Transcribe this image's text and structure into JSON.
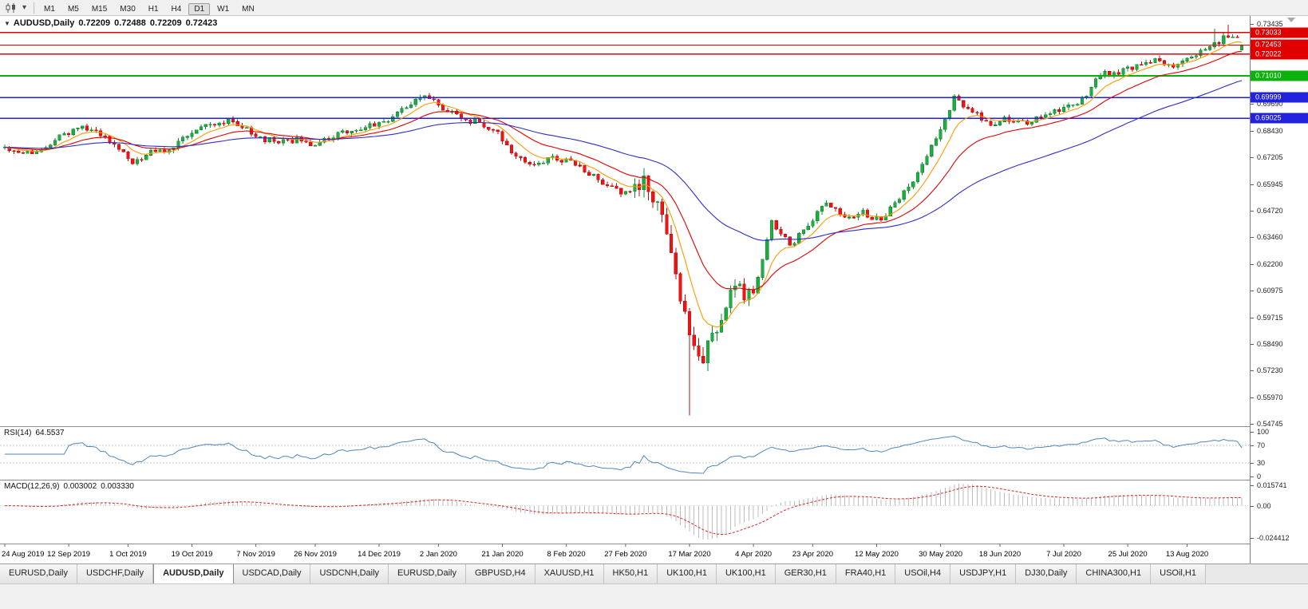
{
  "toolbar": {
    "timeframes": [
      "M1",
      "M5",
      "M15",
      "M30",
      "H1",
      "H4",
      "D1",
      "W1",
      "MN"
    ],
    "active_timeframe": "D1"
  },
  "chart": {
    "symbol_label": "AUDUSD,Daily",
    "ohlc_open": "0.72209",
    "ohlc_high": "0.72488",
    "ohlc_low": "0.72209",
    "ohlc_close": "0.72423",
    "collapse_arrow": "▼"
  },
  "rsi": {
    "name": "RSI(14)",
    "value": "64.5537",
    "axis_labels": [
      "100",
      "70",
      "30",
      "0"
    ],
    "level_lines": [
      70,
      30
    ]
  },
  "macd": {
    "name": "MACD(12,26,9)",
    "value_main": "0.003002",
    "value_signal": "0.003330",
    "axis_max": "0.015741",
    "axis_zero": "0.00",
    "axis_min": "-0.024412"
  },
  "tabs": {
    "active_index": 2,
    "items": [
      "EURUSD,Daily",
      "USDCHF,Daily",
      "AUDUSD,Daily",
      "USDCAD,Daily",
      "USDCNH,Daily",
      "EURUSD,Daily",
      "GBPUSD,H4",
      "XAUUSD,H1",
      "HK50,H1",
      "UK100,H1",
      "UK100,H1",
      "GER30,H1",
      "FRA40,H1",
      "USOil,H4",
      "USDJPY,H1",
      "DJ30,Daily",
      "CHINA300,H1",
      "USOil,H1"
    ]
  },
  "colors": {
    "up": "#1fae41",
    "up_stroke": "#128a30",
    "down": "#ef1515",
    "down_stroke": "#bf0d0d",
    "rsi_line": "#4f86c0",
    "macd_hist": "#bdbdbd",
    "macd_signal": "#dd2222",
    "grid_dash": "#c6c6c6",
    "separator": "#8c8c8c"
  },
  "chart_data": {
    "type": "candlestick",
    "title": "AUDUSD,Daily",
    "last_ohlc": {
      "open": 0.72209,
      "high": 0.72488,
      "low": 0.72209,
      "close": 0.72423
    },
    "y_axis": {
      "min": 0.54745,
      "max": 0.73435,
      "tick_labels": [
        "0.73435",
        "0.69690",
        "0.68430",
        "0.67205",
        "0.65945",
        "0.64720",
        "0.63460",
        "0.62200",
        "0.60975",
        "0.59715",
        "0.58490",
        "0.57230",
        "0.55970",
        "0.54745"
      ]
    },
    "x_axis": {
      "date_labels": [
        "24 Aug 2019",
        "12 Sep 2019",
        "1 Oct 2019",
        "19 Oct 2019",
        "7 Nov 2019",
        "26 Nov 2019",
        "14 Dec 2019",
        "2 Jan 2020",
        "21 Jan 2020",
        "8 Feb 2020",
        "27 Feb 2020",
        "17 Mar 2020",
        "4 Apr 2020",
        "23 Apr 2020",
        "12 May 2020",
        "30 May 2020",
        "18 Jun 2020",
        "7 Jul 2020",
        "25 Jul 2020",
        "13 Aug 2020"
      ],
      "label_interval_candles": 13.64
    },
    "candle_count": 272,
    "anchor_step": 4,
    "close_anchors": [
      0.6755,
      0.674,
      0.676,
      0.682,
      0.686,
      0.685,
      0.678,
      0.67,
      0.674,
      0.676,
      0.682,
      0.686,
      0.689,
      0.687,
      0.681,
      0.679,
      0.68,
      0.677,
      0.682,
      0.685,
      0.687,
      0.689,
      0.695,
      0.701,
      0.695,
      0.69,
      0.688,
      0.684,
      0.672,
      0.669,
      0.672,
      0.67,
      0.665,
      0.658,
      0.655,
      0.662,
      0.645,
      0.605,
      0.576,
      0.59,
      0.612,
      0.606,
      0.642,
      0.631,
      0.64,
      0.651,
      0.644,
      0.646,
      0.642,
      0.653,
      0.664,
      0.681,
      0.7,
      0.693,
      0.688,
      0.69,
      0.688,
      0.692,
      0.695,
      0.699,
      0.711,
      0.712,
      0.715,
      0.718,
      0.715,
      0.719,
      0.723,
      0.729
    ],
    "overrides": {
      "crash_low_index": 150,
      "crash_low_price": 0.5513,
      "spike_highs": [
        {
          "index": 265,
          "price": 0.7322
        },
        {
          "index": 268,
          "price": 0.734
        }
      ]
    },
    "horizontal_levels": [
      {
        "price": 0.73033,
        "label": "0.73033",
        "color": "#e00000",
        "role": "resistance"
      },
      {
        "price": 0.72453,
        "label": "0.72453",
        "color": "#e00000",
        "role": "current-price"
      },
      {
        "price": 0.72022,
        "label": "0.72022",
        "color": "#e00000",
        "role": "resistance"
      },
      {
        "price": 0.7101,
        "label": "0.71010",
        "color": "#0db10d",
        "role": "support"
      },
      {
        "price": 0.69999,
        "label": "0.69999",
        "color": "#2222dd",
        "role": "support"
      },
      {
        "price": 0.69025,
        "label": "0.69025",
        "color": "#2222dd",
        "role": "support"
      }
    ],
    "moving_averages": [
      {
        "type": "ema",
        "period": 8,
        "color": "#ff9900"
      },
      {
        "type": "ema",
        "period": 20,
        "color": "#e00000"
      },
      {
        "type": "ema",
        "period": 55,
        "color": "#2d2dc8"
      }
    ],
    "indicators": [
      {
        "name": "RSI",
        "period": 14,
        "current": 64.5537,
        "range": [
          0,
          100
        ],
        "levels": [
          70,
          30
        ]
      },
      {
        "name": "MACD",
        "fast": 12,
        "slow": 26,
        "signal": 9,
        "current_macd": 0.003002,
        "current_signal": 0.00333,
        "axis_max": 0.015741,
        "axis_min": -0.024412
      }
    ]
  }
}
